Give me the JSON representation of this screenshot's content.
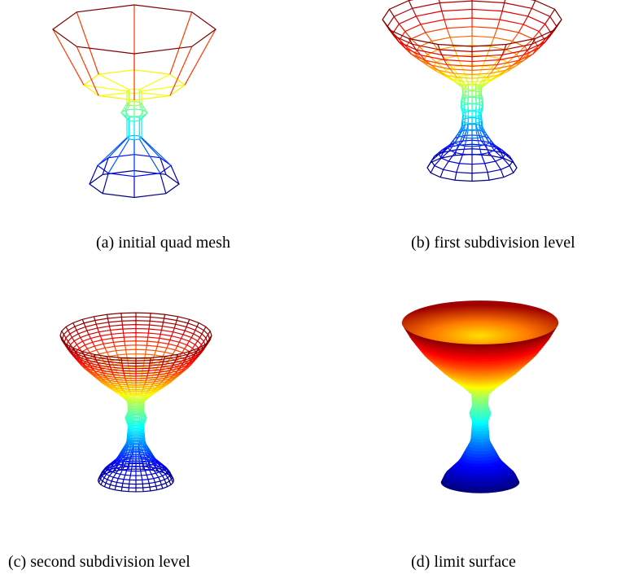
{
  "figures": [
    {
      "caption": "(a) initial quad mesh"
    },
    {
      "caption": "(b) first subdivision level"
    },
    {
      "caption": "(c) second subdivision level"
    },
    {
      "caption": "(d) limit surface"
    }
  ]
}
